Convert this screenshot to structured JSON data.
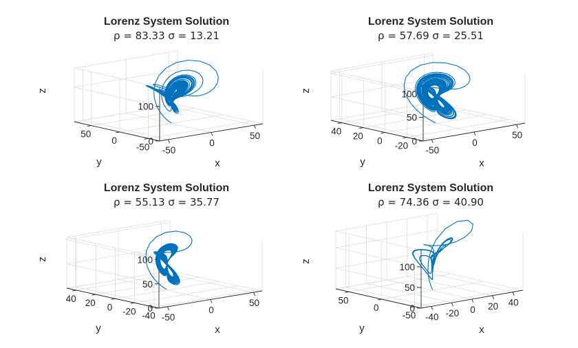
{
  "figure": {
    "background": "#ffffff",
    "axis_color": "#262626",
    "grid_color": "#dcdcdc"
  },
  "chart_data": [
    {
      "type": "line",
      "title": "Lorenz System Solution",
      "subtitle": "ρ  =  83.33  σ  =  13.21",
      "params": {
        "rho": 83.33,
        "sigma": 13.21
      },
      "xlabel": "x",
      "ylabel": "y",
      "zlabel": "z",
      "xticks": [
        {
          "value": -50,
          "label": "-50"
        },
        {
          "value": 0,
          "label": "0"
        },
        {
          "value": 50,
          "label": "50"
        }
      ],
      "yticks": [
        {
          "value": -50,
          "label": "-50"
        },
        {
          "value": 0,
          "label": "0"
        },
        {
          "value": 50,
          "label": "50"
        }
      ],
      "zticks": [
        {
          "value": 0,
          "label": "0"
        },
        {
          "value": 100,
          "label": "100"
        }
      ],
      "xlim": [
        -60,
        60
      ],
      "ylim": [
        -70,
        80
      ],
      "zlim": [
        0,
        155
      ],
      "grid": true,
      "color": "#0072BD"
    },
    {
      "type": "line",
      "title": "Lorenz System Solution",
      "subtitle": "ρ  =  57.69  σ  =  25.51",
      "params": {
        "rho": 57.69,
        "sigma": 25.51
      },
      "xlabel": "x",
      "ylabel": "y",
      "zlabel": "z",
      "xticks": [
        {
          "value": -50,
          "label": "-50"
        },
        {
          "value": 0,
          "label": "0"
        },
        {
          "value": 50,
          "label": "50"
        }
      ],
      "yticks": [
        {
          "value": -20,
          "label": "-20"
        },
        {
          "value": 0,
          "label": "0"
        },
        {
          "value": 20,
          "label": "20"
        },
        {
          "value": 40,
          "label": "40"
        }
      ],
      "zticks": [
        {
          "value": 0,
          "label": "0"
        },
        {
          "value": 50,
          "label": "50"
        },
        {
          "value": 100,
          "label": "100"
        }
      ],
      "xlim": [
        -60,
        60
      ],
      "ylim": [
        -35,
        50
      ],
      "zlim": [
        0,
        105
      ],
      "grid": true,
      "color": "#0072BD"
    },
    {
      "type": "line",
      "title": "Lorenz System Solution",
      "subtitle": "ρ  =  55.13  σ  =  35.77",
      "params": {
        "rho": 55.13,
        "sigma": 35.77
      },
      "xlabel": "x",
      "ylabel": "y",
      "zlabel": "z",
      "xticks": [
        {
          "value": -50,
          "label": "-50"
        },
        {
          "value": 0,
          "label": "0"
        },
        {
          "value": 50,
          "label": "50"
        }
      ],
      "yticks": [
        {
          "value": -40,
          "label": "-40"
        },
        {
          "value": -20,
          "label": "-20"
        },
        {
          "value": 0,
          "label": "0"
        },
        {
          "value": 20,
          "label": "20"
        },
        {
          "value": 40,
          "label": "40"
        }
      ],
      "zticks": [
        {
          "value": 0,
          "label": "0"
        },
        {
          "value": 50,
          "label": "50"
        },
        {
          "value": 100,
          "label": "100"
        }
      ],
      "xlim": [
        -60,
        60
      ],
      "ylim": [
        -45,
        50
      ],
      "zlim": [
        0,
        105
      ],
      "grid": true,
      "color": "#0072BD"
    },
    {
      "type": "line",
      "title": "Lorenz System Solution",
      "subtitle": "ρ  =  74.36  σ  =  40.90",
      "params": {
        "rho": 74.36,
        "sigma": 40.9
      },
      "xlabel": "x",
      "ylabel": "y",
      "zlabel": "z",
      "xticks": [
        {
          "value": -40,
          "label": "-40"
        },
        {
          "value": -20,
          "label": "-20"
        },
        {
          "value": 0,
          "label": "0"
        },
        {
          "value": 20,
          "label": "20"
        },
        {
          "value": 40,
          "label": "40"
        }
      ],
      "yticks": [
        {
          "value": -50,
          "label": "-50"
        },
        {
          "value": 0,
          "label": "0"
        },
        {
          "value": 50,
          "label": "50"
        }
      ],
      "zticks": [
        {
          "value": 0,
          "label": "0"
        },
        {
          "value": 50,
          "label": "50"
        },
        {
          "value": 100,
          "label": "100"
        }
      ],
      "xlim": [
        -50,
        50
      ],
      "ylim": [
        -60,
        70
      ],
      "zlim": [
        0,
        140
      ],
      "grid": true,
      "color": "#0072BD"
    }
  ]
}
